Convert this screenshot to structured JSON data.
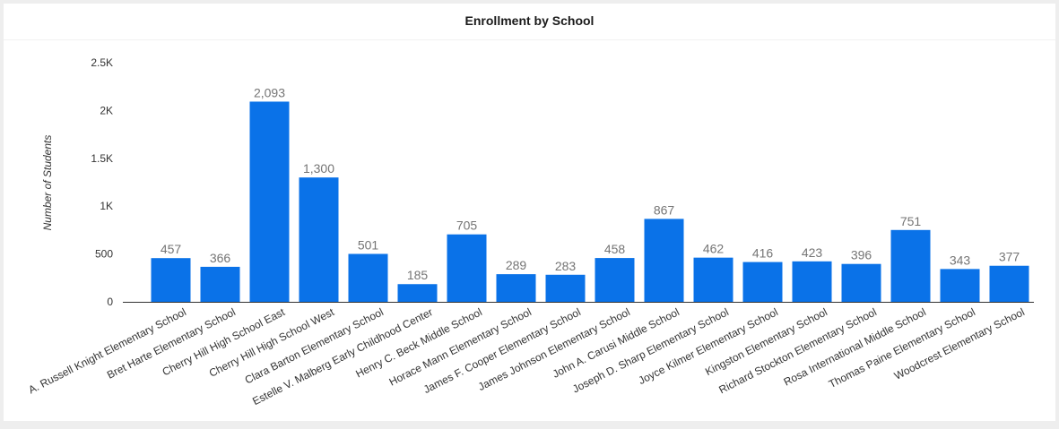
{
  "chart_data": {
    "type": "bar",
    "title": "Enrollment by School",
    "xlabel": "",
    "ylabel": "Number of Students",
    "ylim": [
      0,
      2500
    ],
    "yticks": [
      0,
      500,
      1000,
      1500,
      2000,
      2500
    ],
    "ytick_labels": [
      "0",
      "500",
      "1K",
      "1.5K",
      "2K",
      "2.5K"
    ],
    "categories": [
      "A. Russell Knight Elementary School",
      "Bret Harte Elementary School",
      "Cherry Hill High School East",
      "Cherry Hill High School West",
      "Clara Barton Elementary School",
      "Estelle V. Malberg Early Childhood Center",
      "Henry C. Beck Middle School",
      "Horace Mann Elementary School",
      "James F. Cooper Elementary School",
      "James Johnson Elementary School",
      "John A. Carusi Middle School",
      "Joseph D. Sharp Elementary School",
      "Joyce Kilmer Elementary School",
      "Kingston Elementary School",
      "Richard Stockton Elementary School",
      "Rosa International Middle School",
      "Thomas Paine Elementary School",
      "Woodcrest Elementary School"
    ],
    "values": [
      457,
      366,
      2093,
      1300,
      501,
      185,
      705,
      289,
      283,
      458,
      867,
      462,
      416,
      423,
      396,
      751,
      343,
      377
    ],
    "value_labels": [
      "457",
      "366",
      "2,093",
      "1,300",
      "501",
      "185",
      "705",
      "289",
      "283",
      "458",
      "867",
      "462",
      "416",
      "423",
      "396",
      "751",
      "343",
      "377"
    ],
    "bar_color": "#0a72e8",
    "grid": false,
    "legend": "none"
  }
}
